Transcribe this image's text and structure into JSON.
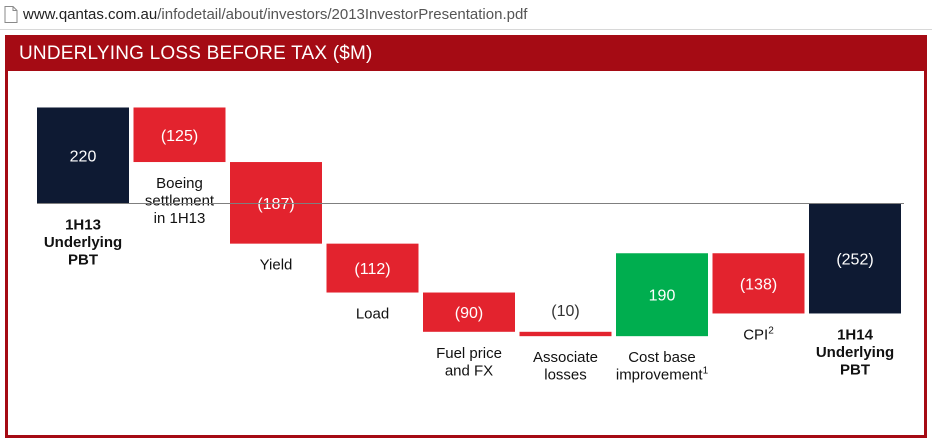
{
  "browser": {
    "url_host": "www.qantas.com.au",
    "url_path": "/infodetail/about/investors/2013InvestorPresentation.pdf",
    "icon": "document-icon"
  },
  "colors": {
    "brand_red": "#a50b14",
    "total_bar": "#0e1a33",
    "negative_bar": "#e3232e",
    "positive_bar": "#00ae4f",
    "axis": "#7f7f7f"
  },
  "slide": {
    "title": "UNDERLYING LOSS BEFORE TAX ($M)"
  },
  "chart_data": {
    "type": "bar",
    "subtype": "waterfall",
    "title": "UNDERLYING LOSS BEFORE TAX ($M)",
    "unit": "$M",
    "items": [
      {
        "category": "1H13 Underlying PBT",
        "label_lines": [
          "1H13",
          "Underlying",
          "PBT"
        ],
        "value": 220,
        "display": "220",
        "kind": "total",
        "bold": true
      },
      {
        "category": "Boeing settlement in 1H13",
        "label_lines": [
          "Boeing",
          "settlement",
          "in 1H13"
        ],
        "value": -125,
        "display": "(125)",
        "kind": "delta"
      },
      {
        "category": "Yield",
        "label_lines": [
          "Yield"
        ],
        "value": -187,
        "display": "(187)",
        "kind": "delta"
      },
      {
        "category": "Load",
        "label_lines": [
          "Load"
        ],
        "value": -112,
        "display": "(112)",
        "kind": "delta"
      },
      {
        "category": "Fuel price and FX",
        "label_lines": [
          "Fuel price",
          "and FX"
        ],
        "value": -90,
        "display": "(90)",
        "kind": "delta"
      },
      {
        "category": "Associate losses",
        "label_lines": [
          "Associate",
          "losses"
        ],
        "value": -10,
        "display": "(10)",
        "kind": "delta"
      },
      {
        "category": "Cost base improvement",
        "label_lines": [
          "Cost base",
          "improvement"
        ],
        "superscript": "1",
        "value": 190,
        "display": "190",
        "kind": "delta"
      },
      {
        "category": "CPI",
        "label_lines": [
          "CPI"
        ],
        "superscript": "2",
        "value": -138,
        "display": "(138)",
        "kind": "delta"
      },
      {
        "category": "1H14 Underlying PBT",
        "label_lines": [
          "1H14",
          "Underlying",
          "PBT"
        ],
        "value": -252,
        "display": "(252)",
        "kind": "total",
        "bold": true
      }
    ]
  }
}
